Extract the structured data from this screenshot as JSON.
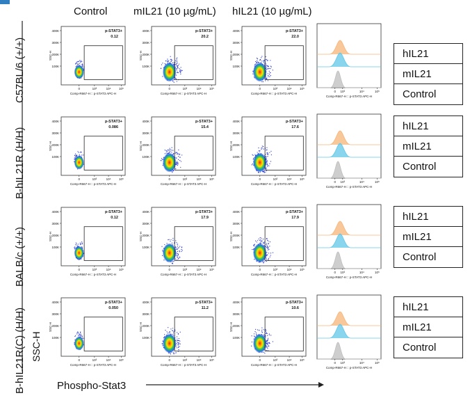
{
  "columns": [
    "Control",
    "mIL21 (10 µg/mL)",
    "hIL21 (10 µg/mL)"
  ],
  "rows": [
    "C57BL/6 (+/+)",
    "B-hIL21R (H/H)",
    "BALB/c (+/+)",
    "B-hIL21R(C) (H/H)"
  ],
  "x_axis_label": "Phospho-Stat3",
  "y_axis_label": "SSC-H",
  "chart_data": {
    "type": "scatter",
    "description_kind": "flow-cytometry density plots with gate percentages and histogram overlays",
    "gate_label": "p-STAT3+",
    "plot_axis_x": "Comp-R667-H :: p-STAT3 APC-H",
    "plot_axis_y": "SSC-H",
    "y_ticks": [
      "400K",
      "300K",
      "200K",
      "100K",
      "0"
    ],
    "x_ticks": [
      "0",
      "10³",
      "10⁴",
      "10⁵"
    ],
    "hist_x_axis": "Comp-R667-H :: p-STAT3 APC-H",
    "hist_x_ticks": [
      "0",
      "10³",
      "10⁴",
      "10⁵"
    ],
    "gate_values": [
      [
        "0.12",
        "20.2",
        "22.0"
      ],
      [
        "0.086",
        "15.4",
        "17.6"
      ],
      [
        "0.12",
        "17.9",
        "17.9"
      ],
      [
        "0.050",
        "11.2",
        "10.6"
      ]
    ],
    "histogram_legend": [
      "hIL21",
      "mIL21",
      "Control"
    ],
    "histogram_colors": {
      "hIL21": "#f5b57a",
      "mIL21": "#62c7e8",
      "Control": "#bdbdbd"
    }
  }
}
